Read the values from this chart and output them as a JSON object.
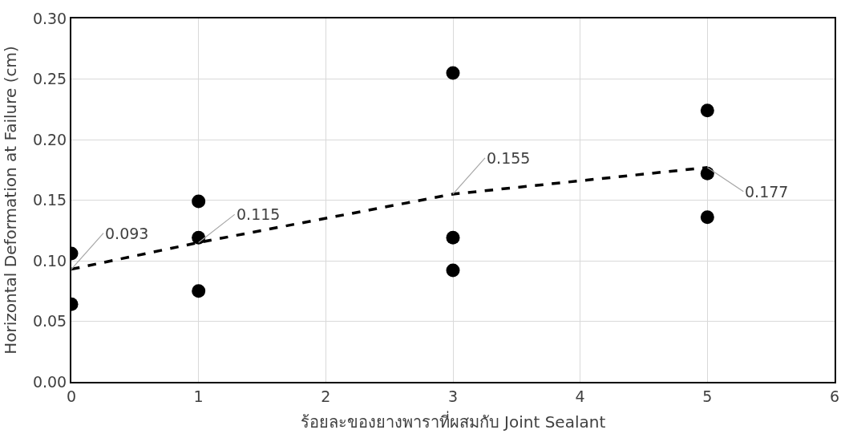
{
  "chart_data": {
    "type": "scatter",
    "xlabel": "ร้อยละของยางพาราที่ผสมกับ Joint Sealant",
    "ylabel": "Horizontal Deformation at Failure (cm)",
    "series": [
      {
        "color": "#000000",
        "marker": "circle",
        "x": [
          0,
          0,
          1,
          1,
          1,
          3,
          3,
          3,
          5,
          5,
          5
        ],
        "values": [
          0.106,
          0.064,
          0.149,
          0.119,
          0.075,
          0.255,
          0.119,
          0.092,
          0.224,
          0.172,
          0.136
        ]
      },
      {
        "type": "line",
        "color": "#000000",
        "line_style": "dashed",
        "marker": "none",
        "x": [
          0,
          1,
          3,
          5
        ],
        "values": [
          0.093,
          0.115,
          0.155,
          0.177
        ]
      }
    ],
    "annotations": [
      {
        "text": "0.093",
        "x": 0,
        "y": 0.093
      },
      {
        "text": "0.115",
        "x": 1,
        "y": 0.115
      },
      {
        "text": "0.155",
        "x": 3,
        "y": 0.155
      },
      {
        "text": "0.177",
        "x": 5,
        "y": 0.177
      }
    ],
    "xlim": [
      0,
      6
    ],
    "xticks": [
      0,
      1,
      2,
      3,
      4,
      5,
      6
    ],
    "ylim": [
      0,
      0.3
    ],
    "yticks": [
      {
        "value": 0,
        "label": "0.00"
      },
      {
        "value": 0.05,
        "label": "0.05"
      },
      {
        "value": 0.1,
        "label": "0.10"
      },
      {
        "value": 0.15,
        "label": "0.15"
      },
      {
        "value": 0.2,
        "label": "0.20"
      },
      {
        "value": 0.25,
        "label": "0.25"
      },
      {
        "value": 0.3,
        "label": "0.30"
      }
    ],
    "grid": true,
    "legend": false
  }
}
